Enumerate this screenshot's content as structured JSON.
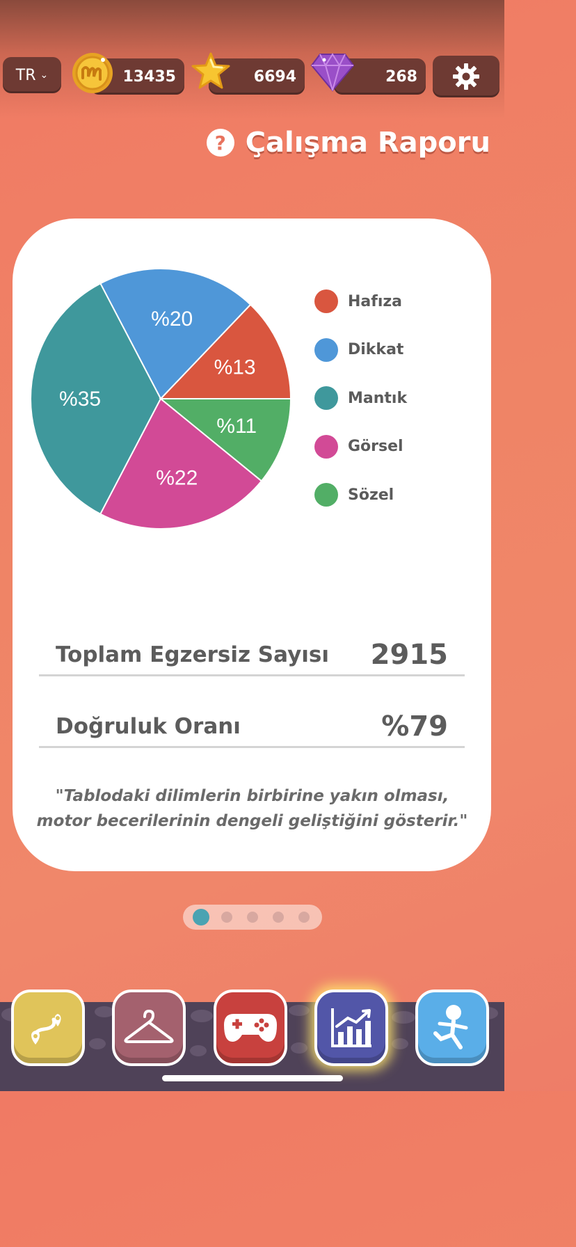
{
  "top_bar": {
    "language": "TR",
    "coins": "13435",
    "stars": "6694",
    "gems": "268",
    "icons": {
      "coin": "coin-icon",
      "star": "star-icon",
      "gem": "gem-icon",
      "settings": "gear-icon",
      "dropdown": "chevron-down-icon"
    }
  },
  "header": {
    "title": "Çalışma Raporu",
    "help_symbol": "?"
  },
  "chart_data": {
    "type": "pie",
    "slices": [
      {
        "label": "Hafıza",
        "value": 13,
        "color": "#d9563f",
        "text": "%13"
      },
      {
        "label": "Dikkat",
        "value": 20,
        "color": "#4f97d8",
        "text": "%20"
      },
      {
        "label": "Mantık",
        "value": 35,
        "color": "#3f989c",
        "text": "%35"
      },
      {
        "label": "Görsel",
        "value": 22,
        "color": "#d24a96",
        "text": "%22"
      },
      {
        "label": "Sözel",
        "value": 11,
        "color": "#52ae66",
        "text": "%11"
      }
    ],
    "legend_position": "right"
  },
  "stats": {
    "total_label": "Toplam Egzersiz Sayısı",
    "total_value": "2915",
    "accuracy_label": "Doğruluk Oranı",
    "accuracy_value": "%79"
  },
  "quote": {
    "line1": "\"Tablodaki dilimlerin birbirine yakın olması,",
    "line2": "motor becerilerinin dengeli geliştiğini gösterir.\""
  },
  "pager": {
    "count": 5,
    "active": 0
  },
  "bottom_nav": [
    {
      "name": "map",
      "icon": "map-route-icon",
      "color": "#e0c45a"
    },
    {
      "name": "wardrobe",
      "icon": "hanger-icon",
      "color": "#a4616e"
    },
    {
      "name": "games",
      "icon": "gamepad-icon",
      "color": "#c8413e"
    },
    {
      "name": "reports",
      "icon": "chart-icon",
      "color": "#5256a8",
      "active": true
    },
    {
      "name": "character",
      "icon": "character-icon",
      "color": "#5aaee8"
    }
  ]
}
